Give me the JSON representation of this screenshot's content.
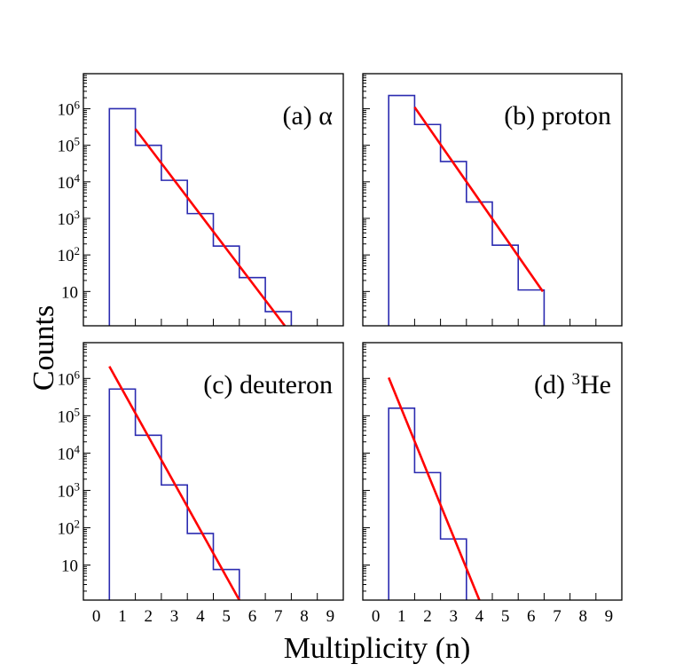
{
  "figure": {
    "ylabel": "Counts",
    "xlabel": "Multiplicity (n)",
    "x_tick_labels": [
      "0",
      "1",
      "2",
      "3",
      "4",
      "5",
      "6",
      "7",
      "8",
      "9"
    ],
    "y_tick_labels": [
      {
        "base": "10",
        "exp": "",
        "decade": 1
      },
      {
        "base": "10",
        "exp": "2",
        "decade": 2
      },
      {
        "base": "10",
        "exp": "3",
        "decade": 3
      },
      {
        "base": "10",
        "exp": "4",
        "decade": 4
      },
      {
        "base": "10",
        "exp": "5",
        "decade": 5
      },
      {
        "base": "10",
        "exp": "6",
        "decade": 6
      }
    ],
    "colors": {
      "histogram": "#2b2bb0",
      "fit": "#ff0000",
      "axis": "#000000"
    }
  },
  "chart_data": [
    {
      "type": "bar",
      "histogram": true,
      "title": {
        "text": "(a) α",
        "prefix": "(a) α",
        "sup": "",
        "rest": ""
      },
      "xlabel": "Multiplicity (n)",
      "ylabel": "Counts",
      "xlim": [
        -0.5,
        9.5
      ],
      "ylim": [
        1.15,
        9100000.0
      ],
      "yscale": "log",
      "categories": [
        1,
        2,
        3,
        4,
        5,
        6,
        7
      ],
      "values": [
        1000000.0,
        100000.0,
        11000.0,
        1350.0,
        175,
        24,
        2.8
      ],
      "fit": {
        "x": [
          1.5,
          7.25
        ],
        "y": [
          280000.0,
          1.15
        ]
      }
    },
    {
      "type": "bar",
      "histogram": true,
      "title": {
        "text": "(b) proton",
        "prefix": "(b) proton",
        "sup": "",
        "rest": ""
      },
      "xlabel": "Multiplicity (n)",
      "ylabel": "Counts",
      "xlim": [
        -0.5,
        9.5
      ],
      "ylim": [
        1.15,
        9100000.0
      ],
      "yscale": "log",
      "categories": [
        1,
        2,
        3,
        4,
        5,
        6
      ],
      "values": [
        2300000.0,
        370000.0,
        36000.0,
        2800.0,
        185,
        11
      ],
      "fit": {
        "x": [
          1.5,
          6.45
        ],
        "y": [
          1100000.0,
          10
        ]
      }
    },
    {
      "type": "bar",
      "histogram": true,
      "title": {
        "text": "(c) deuteron",
        "prefix": "(c) deuteron",
        "sup": "",
        "rest": ""
      },
      "xlabel": "Multiplicity (n)",
      "ylabel": "Counts",
      "xlim": [
        -0.5,
        9.5
      ],
      "ylim": [
        1.15,
        9100000.0
      ],
      "yscale": "log",
      "categories": [
        1,
        2,
        3,
        4,
        5
      ],
      "values": [
        520000.0,
        30000.0,
        1400.0,
        70,
        7.6
      ],
      "fit": {
        "x": [
          0.5,
          5.5
        ],
        "y": [
          2100000.0,
          1.15
        ]
      }
    },
    {
      "type": "bar",
      "histogram": true,
      "title": {
        "text": "(d) 3He",
        "prefix": "(d) ",
        "sup": "3",
        "rest": "He"
      },
      "xlabel": "Multiplicity (n)",
      "ylabel": "Counts",
      "xlim": [
        -0.5,
        9.5
      ],
      "ylim": [
        1.15,
        9100000.0
      ],
      "yscale": "log",
      "categories": [
        1,
        2,
        3
      ],
      "values": [
        160000.0,
        3000.0,
        50
      ],
      "fit": {
        "x": [
          0.5,
          4.0
        ],
        "y": [
          1050000.0,
          1.15
        ]
      }
    }
  ]
}
